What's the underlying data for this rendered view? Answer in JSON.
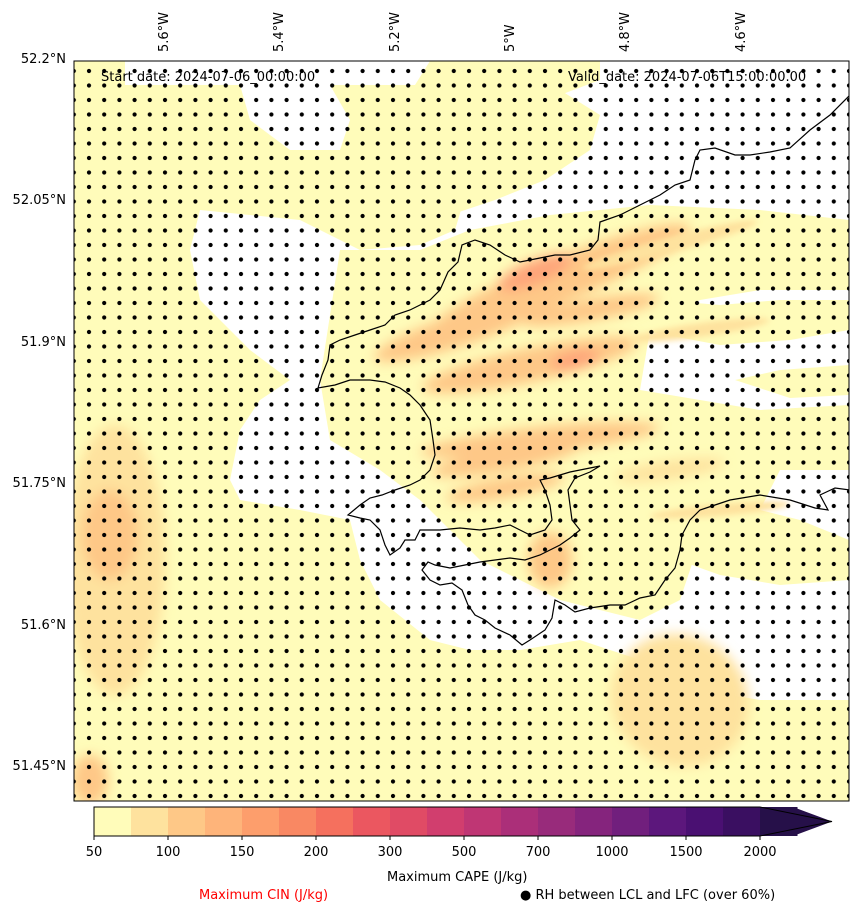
{
  "header": {
    "start_date": "Start date: 2024-07-06_00:00:00",
    "valid_date": "Valid_date: 2024-07-06T15:00:00.00"
  },
  "axes": {
    "lon_labels": [
      "5.6°W",
      "5.4°W",
      "5.2°W",
      "5°W",
      "4.8°W",
      "4.6°W"
    ],
    "lat_labels": [
      "52.2°N",
      "52.05°N",
      "51.9°N",
      "51.75°N",
      "51.6°N",
      "51.45°N"
    ]
  },
  "colorbar": {
    "label": "Maximum CAPE (J/kg)",
    "ticks": [
      "50",
      "100",
      "150",
      "200",
      "300",
      "500",
      "700",
      "1000",
      "1500",
      "2000"
    ],
    "colors": [
      "#fffcba",
      "#fee29e",
      "#fec887",
      "#feb47a",
      "#fd9e6c",
      "#f98863",
      "#f5705e",
      "#eb5760",
      "#e04b65",
      "#d13e6e",
      "#bf3674",
      "#ab2f79",
      "#982b7b",
      "#85247d",
      "#711f7d",
      "#5c177c",
      "#4a1072",
      "#3a0f61",
      "#261049"
    ]
  },
  "legend": {
    "cin_label": "Maximum CIN (J/kg)",
    "cin_color": "#ff0000",
    "rh_label": "● RH between LCL and LFC (over 60%)"
  }
}
